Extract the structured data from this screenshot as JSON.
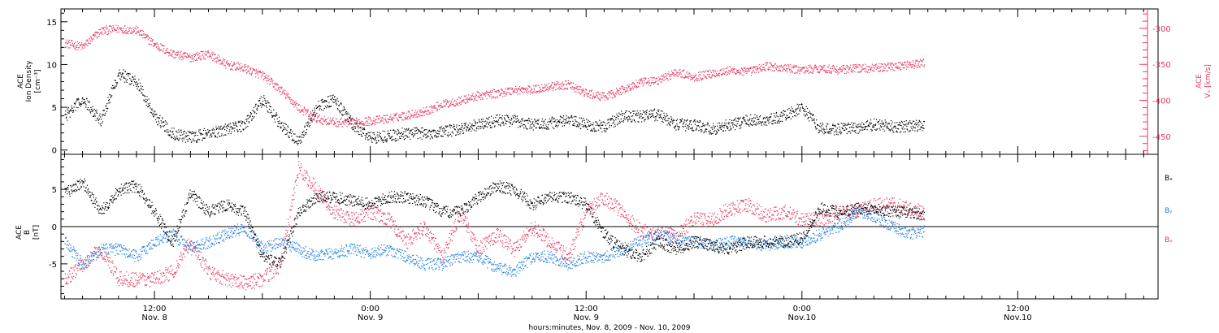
{
  "chart_data": [
    {
      "type": "scatter",
      "panel": "ion-density",
      "ylabel_lines": [
        "ACE",
        "Ion Density",
        "[cm⁻³]"
      ],
      "ylim": [
        -0.5,
        16.5
      ],
      "yticks": [
        0,
        5,
        10,
        15
      ],
      "right_ylabel_lines": [
        "ACE",
        "Vₓ [km/s]"
      ],
      "right_ylim": [
        -475,
        -273
      ],
      "right_yticks": [
        -300,
        -350,
        -400,
        -450
      ],
      "x_hours_range": [
        6.8,
        67.8
      ],
      "data_end_hours": 54.8,
      "series": [
        {
          "axis": "left",
          "color": "#000000",
          "x": [
            7,
            8,
            9,
            10,
            11,
            12,
            13,
            14,
            15,
            16,
            17,
            18,
            19,
            20,
            21,
            22,
            23,
            24,
            25,
            26,
            27,
            28,
            29,
            30,
            31,
            32,
            33,
            34,
            35,
            36,
            37,
            38,
            39,
            40,
            41,
            42,
            43,
            44,
            45,
            46,
            47,
            48,
            49,
            50,
            51,
            52,
            53,
            54,
            54.8
          ],
          "values": [
            4,
            6,
            3.5,
            9,
            8,
            4,
            2,
            1.5,
            2,
            2.5,
            3,
            6,
            3,
            1,
            5,
            6,
            3,
            1.5,
            1.7,
            2,
            2,
            2.2,
            2.5,
            3,
            3.5,
            3.5,
            3,
            3.2,
            3.5,
            3,
            2.8,
            4,
            4,
            4.2,
            3,
            3,
            2.5,
            3,
            3.5,
            3.5,
            4,
            5,
            2.5,
            2.5,
            2.6,
            3,
            2.8,
            2.8,
            3
          ]
        },
        {
          "axis": "right",
          "color": "#e6375e",
          "x": [
            7,
            8,
            9,
            10,
            11,
            12,
            13,
            14,
            15,
            16,
            17,
            18,
            19,
            20,
            21,
            22,
            23,
            24,
            25,
            26,
            27,
            28,
            29,
            30,
            31,
            32,
            33,
            34,
            35,
            36,
            37,
            38,
            39,
            40,
            41,
            42,
            43,
            44,
            45,
            46,
            47,
            48,
            49,
            50,
            51,
            52,
            53,
            54,
            54.8
          ],
          "values": [
            -320,
            -325,
            -303,
            -300,
            -302,
            -322,
            -335,
            -340,
            -335,
            -350,
            -355,
            -365,
            -385,
            -410,
            -425,
            -430,
            -430,
            -428,
            -425,
            -420,
            -415,
            -405,
            -400,
            -393,
            -390,
            -385,
            -385,
            -380,
            -378,
            -390,
            -395,
            -385,
            -375,
            -372,
            -360,
            -367,
            -362,
            -358,
            -360,
            -352,
            -355,
            -357,
            -355,
            -357,
            -355,
            -355,
            -352,
            -350,
            -348
          ]
        }
      ]
    },
    {
      "type": "scatter",
      "panel": "magnetic-field",
      "ylabel_lines": [
        "ACE",
        "B",
        "[nT]"
      ],
      "ylim": [
        -9.7,
        9.7
      ],
      "yticks": [
        -5,
        0,
        5
      ],
      "zero_line": true,
      "x_hours_range": [
        6.8,
        67.8
      ],
      "legend_placement": "right",
      "series": [
        {
          "name": "Bₓ",
          "color": "#000000",
          "x": [
            7,
            8,
            9,
            10,
            11,
            12,
            13,
            14,
            15,
            16,
            17,
            18,
            19,
            20,
            21,
            22,
            23,
            24,
            25,
            26,
            27,
            28,
            29,
            30,
            31,
            32,
            33,
            34,
            35,
            36,
            37,
            38,
            39,
            40,
            41,
            42,
            43,
            44,
            45,
            46,
            47,
            48,
            49,
            50,
            51,
            52,
            53,
            54,
            54.8
          ],
          "values": [
            4.5,
            6,
            2,
            5,
            5.5,
            2,
            -2,
            4.5,
            2,
            3,
            2,
            -4,
            -5,
            2,
            4,
            4,
            3.5,
            3,
            4,
            4,
            3.5,
            2,
            2,
            4,
            5.5,
            5,
            3,
            4,
            4,
            3,
            -1,
            -3,
            -4,
            -2,
            -3,
            -2,
            -2.5,
            -3,
            -2,
            -2,
            -2,
            -1.5,
            2.5,
            2,
            2.5,
            2.5,
            2,
            2,
            1.5
          ]
        },
        {
          "name": "Bᵧ",
          "color": "#1f7fe0",
          "x": [
            7,
            8,
            9,
            10,
            11,
            12,
            13,
            14,
            15,
            16,
            17,
            18,
            19,
            20,
            21,
            22,
            23,
            24,
            25,
            26,
            27,
            28,
            29,
            30,
            31,
            32,
            33,
            34,
            35,
            36,
            37,
            38,
            39,
            40,
            41,
            42,
            43,
            44,
            45,
            46,
            47,
            48,
            49,
            50,
            51,
            52,
            53,
            54,
            54.8
          ],
          "values": [
            -2,
            -5,
            -3,
            -3,
            -4,
            -2,
            -1,
            -3,
            -2,
            -1,
            0,
            -3,
            -2,
            -3,
            -4,
            -3.5,
            -3,
            -3.5,
            -3,
            -4,
            -5,
            -5,
            -4,
            -4,
            -5.5,
            -6,
            -4,
            -4,
            -5,
            -4,
            -4,
            -3,
            -2,
            -1,
            -1.5,
            -2,
            -2.5,
            -2,
            -2,
            -2.5,
            -2,
            -2,
            -1,
            0,
            2,
            1.5,
            0,
            -1,
            -0.5
          ]
        },
        {
          "name": "Bᵤ",
          "color": "#e6375e",
          "x": [
            7,
            8,
            9,
            10,
            11,
            12,
            13,
            14,
            15,
            16,
            17,
            18,
            19,
            20,
            21,
            22,
            23,
            24,
            25,
            26,
            27,
            28,
            29,
            30,
            31,
            32,
            33,
            34,
            35,
            36,
            37,
            38,
            39,
            40,
            41,
            42,
            43,
            44,
            45,
            46,
            47,
            48,
            49,
            50,
            51,
            52,
            53,
            54,
            54.8
          ],
          "values": [
            -7,
            -5,
            -3,
            -7,
            -7,
            -7,
            -6,
            -2,
            -6,
            -7,
            -7.5,
            -7,
            -5,
            8,
            5,
            2,
            1,
            2,
            1,
            -2,
            0,
            -4,
            2,
            -3,
            -1,
            -3,
            0,
            -2,
            -4,
            2,
            4,
            2,
            -0.5,
            -1,
            -1,
            1,
            1,
            2.5,
            3,
            1.5,
            2,
            1,
            1,
            2,
            2,
            3,
            3,
            2.5,
            1.8
          ]
        }
      ]
    }
  ],
  "x_axis": {
    "ticks": [
      {
        "hours": 12,
        "line1": "12:00",
        "line2": "Nov. 8"
      },
      {
        "hours": 24,
        "line1": "0:00",
        "line2": "Nov. 9"
      },
      {
        "hours": 36,
        "line1": "12:00",
        "line2": "Nov. 9"
      },
      {
        "hours": 48,
        "line1": "0:00",
        "line2": "Nov.10"
      },
      {
        "hours": 60,
        "line1": "12:00",
        "line2": "Nov.10"
      }
    ],
    "title": "hours:minutes, Nov.  8, 2009 - Nov. 10, 2009"
  }
}
